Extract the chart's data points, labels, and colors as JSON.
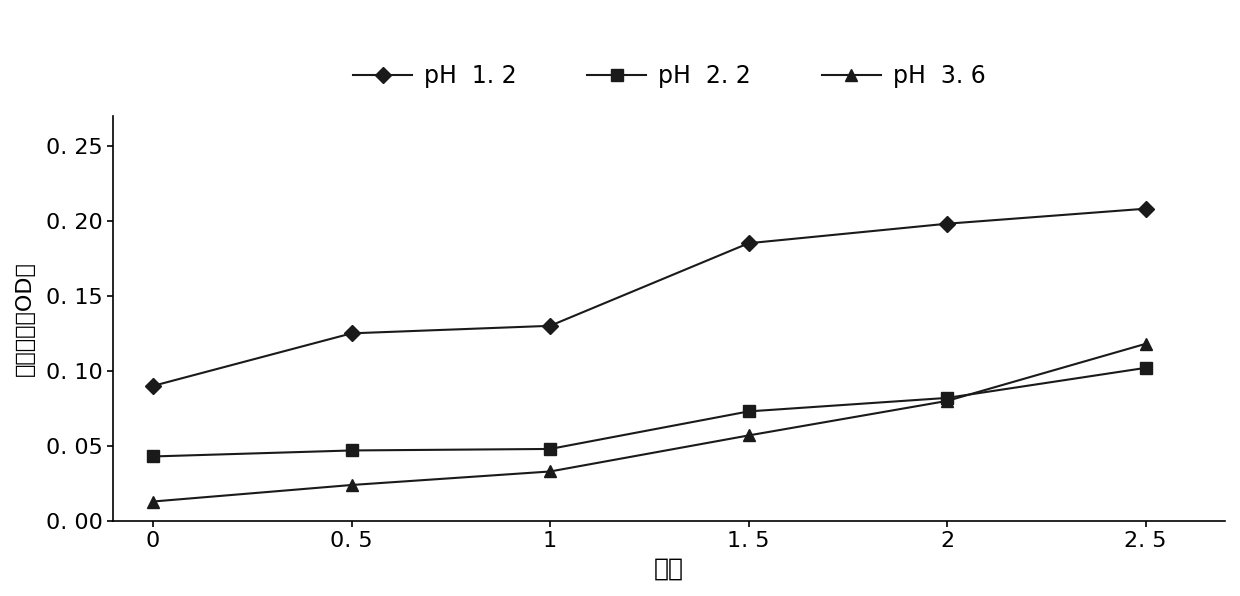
{
  "x": [
    0,
    0.5,
    1,
    1.5,
    2,
    2.5
  ],
  "ph1_2": [
    0.09,
    0.125,
    0.13,
    0.185,
    0.198,
    0.208
  ],
  "ph2_2": [
    0.043,
    0.047,
    0.048,
    0.073,
    0.082,
    0.102
  ],
  "ph3_6": [
    0.013,
    0.024,
    0.033,
    0.057,
    0.08,
    0.118
  ],
  "legend_labels": [
    "pH  1. 2",
    "pH  2. 2",
    "pH  3. 6"
  ],
  "xlabel": "时间",
  "ylabel": "累积释放量OD値",
  "xtick_labels": [
    "0",
    "0. 5",
    "1",
    "1. 5",
    "2",
    "2. 5"
  ],
  "yticks": [
    0.0,
    0.05,
    0.1,
    0.15,
    0.2,
    0.25
  ],
  "ytick_labels": [
    "0. 00",
    "0. 05",
    "0. 10",
    "0. 15",
    "0. 20",
    "0. 25"
  ],
  "ylim": [
    0.0,
    0.27
  ],
  "line_color": "#1a1a1a",
  "marker_diamond": "D",
  "marker_square": "s",
  "marker_triangle": "^",
  "marker_size": 8,
  "linewidth": 1.5
}
